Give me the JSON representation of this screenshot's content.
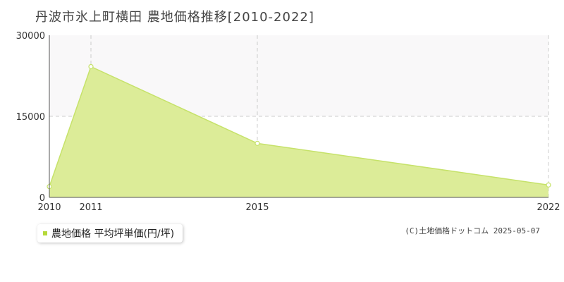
{
  "title": "丹波市氷上町横田 農地価格推移[2010-2022]",
  "legend": {
    "label": "農地価格 平均坪単価(円/坪)"
  },
  "copyright": "(C)土地価格ドットコム 2025-05-07",
  "colors": {
    "fill": "#dcec98",
    "line": "#c6e26a",
    "point_fill": "#ffffff",
    "legend_swatch": "#b5d93a",
    "axis": "#555555",
    "grid": "#cccccc",
    "band": "#f9f8f9",
    "tick_text": "#333333"
  },
  "chart_data": {
    "type": "area",
    "title": "丹波市氷上町横田 農地価格推移[2010-2022]",
    "xlabel": "",
    "ylabel": "",
    "x": [
      2010,
      2011,
      2015,
      2022
    ],
    "x_tick_labels": [
      "2010",
      "2011",
      "2015",
      "2022"
    ],
    "y_ticks": [
      0,
      15000,
      30000
    ],
    "y_tick_labels": [
      "0",
      "15000",
      "30000"
    ],
    "ylim": [
      0,
      30000
    ],
    "series": [
      {
        "name": "農地価格 平均坪単価(円/坪)",
        "values": [
          2000,
          24200,
          10000,
          2300
        ]
      }
    ],
    "grid": true,
    "legend_position": "bottom-left"
  }
}
